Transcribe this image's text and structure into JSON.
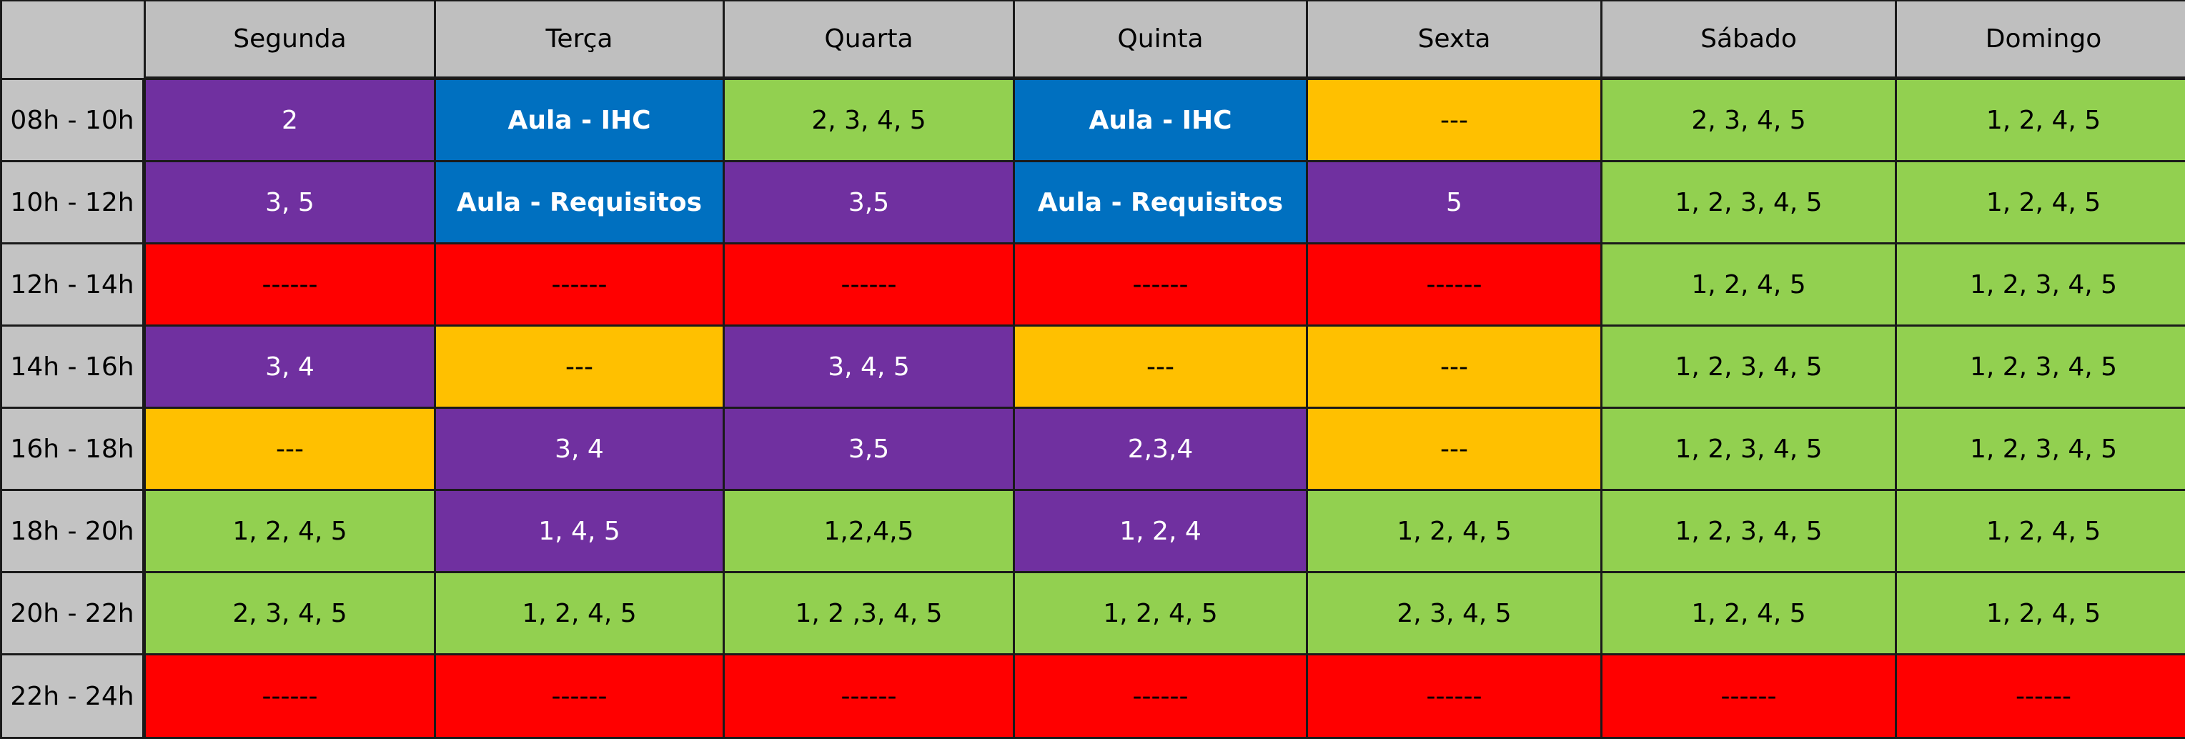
{
  "colors": {
    "free": "#92d050",
    "partial": "#7030a0",
    "class": "#0070c0",
    "unavailable": "#ffc000",
    "blocked": "#ff0000",
    "header": "#bfbfbf"
  },
  "days": [
    "Segunda",
    "Terça",
    "Quarta",
    "Quinta",
    "Sexta",
    "Sábado",
    "Domingo"
  ],
  "rows": [
    {
      "time": "08h - 10h",
      "cells": [
        {
          "text": "2",
          "style": "purple"
        },
        {
          "text": "Aula - IHC",
          "style": "blue"
        },
        {
          "text": "2, 3, 4, 5",
          "style": "green"
        },
        {
          "text": "Aula - IHC",
          "style": "blue"
        },
        {
          "text": "---",
          "style": "orange"
        },
        {
          "text": "2, 3, 4, 5",
          "style": "green"
        },
        {
          "text": "1, 2, 4, 5",
          "style": "green"
        }
      ]
    },
    {
      "time": "10h - 12h",
      "cells": [
        {
          "text": "3, 5",
          "style": "purple"
        },
        {
          "text": "Aula - Requisitos",
          "style": "blue"
        },
        {
          "text": "3,5",
          "style": "purple"
        },
        {
          "text": "Aula - Requisitos",
          "style": "blue"
        },
        {
          "text": "5",
          "style": "purple"
        },
        {
          "text": "1, 2, 3, 4, 5",
          "style": "green"
        },
        {
          "text": "1, 2, 4, 5",
          "style": "green"
        }
      ]
    },
    {
      "time": "12h - 14h",
      "cells": [
        {
          "text": "------",
          "style": "red"
        },
        {
          "text": "------",
          "style": "red"
        },
        {
          "text": "------",
          "style": "red"
        },
        {
          "text": "------",
          "style": "red"
        },
        {
          "text": "------",
          "style": "red"
        },
        {
          "text": "1, 2, 4, 5",
          "style": "green"
        },
        {
          "text": "1, 2, 3, 4, 5",
          "style": "green"
        }
      ]
    },
    {
      "time": "14h - 16h",
      "cells": [
        {
          "text": "3, 4",
          "style": "purple"
        },
        {
          "text": "---",
          "style": "orange"
        },
        {
          "text": "3, 4, 5",
          "style": "purple"
        },
        {
          "text": "---",
          "style": "orange"
        },
        {
          "text": "---",
          "style": "orange"
        },
        {
          "text": "1, 2, 3, 4, 5",
          "style": "green"
        },
        {
          "text": "1, 2, 3, 4, 5",
          "style": "green"
        }
      ]
    },
    {
      "time": "16h - 18h",
      "cells": [
        {
          "text": "---",
          "style": "orange"
        },
        {
          "text": "3, 4",
          "style": "purple"
        },
        {
          "text": "3,5",
          "style": "purple"
        },
        {
          "text": "2,3,4",
          "style": "purple"
        },
        {
          "text": "---",
          "style": "orange"
        },
        {
          "text": "1, 2, 3, 4, 5",
          "style": "green"
        },
        {
          "text": "1, 2, 3, 4, 5",
          "style": "green"
        }
      ]
    },
    {
      "time": "18h - 20h",
      "cells": [
        {
          "text": "1, 2, 4, 5",
          "style": "green"
        },
        {
          "text": "1, 4, 5",
          "style": "purple"
        },
        {
          "text": "1,2,4,5",
          "style": "green"
        },
        {
          "text": "1, 2, 4",
          "style": "purple"
        },
        {
          "text": "1, 2, 4, 5",
          "style": "green"
        },
        {
          "text": "1, 2, 3, 4, 5",
          "style": "green"
        },
        {
          "text": "1, 2, 4, 5",
          "style": "green"
        }
      ]
    },
    {
      "time": "20h - 22h",
      "cells": [
        {
          "text": "2, 3, 4, 5",
          "style": "green"
        },
        {
          "text": "1, 2, 4, 5",
          "style": "green"
        },
        {
          "text": "1, 2 ,3, 4, 5",
          "style": "green"
        },
        {
          "text": "1, 2, 4, 5",
          "style": "green"
        },
        {
          "text": "2, 3, 4, 5",
          "style": "green"
        },
        {
          "text": "1, 2, 4, 5",
          "style": "green"
        },
        {
          "text": "1, 2, 4, 5",
          "style": "green"
        }
      ]
    },
    {
      "time": "22h - 24h",
      "cells": [
        {
          "text": "------",
          "style": "red"
        },
        {
          "text": "------",
          "style": "red"
        },
        {
          "text": "------",
          "style": "red"
        },
        {
          "text": "------",
          "style": "red"
        },
        {
          "text": "------",
          "style": "red"
        },
        {
          "text": "------",
          "style": "red"
        },
        {
          "text": "------",
          "style": "red"
        }
      ]
    }
  ]
}
